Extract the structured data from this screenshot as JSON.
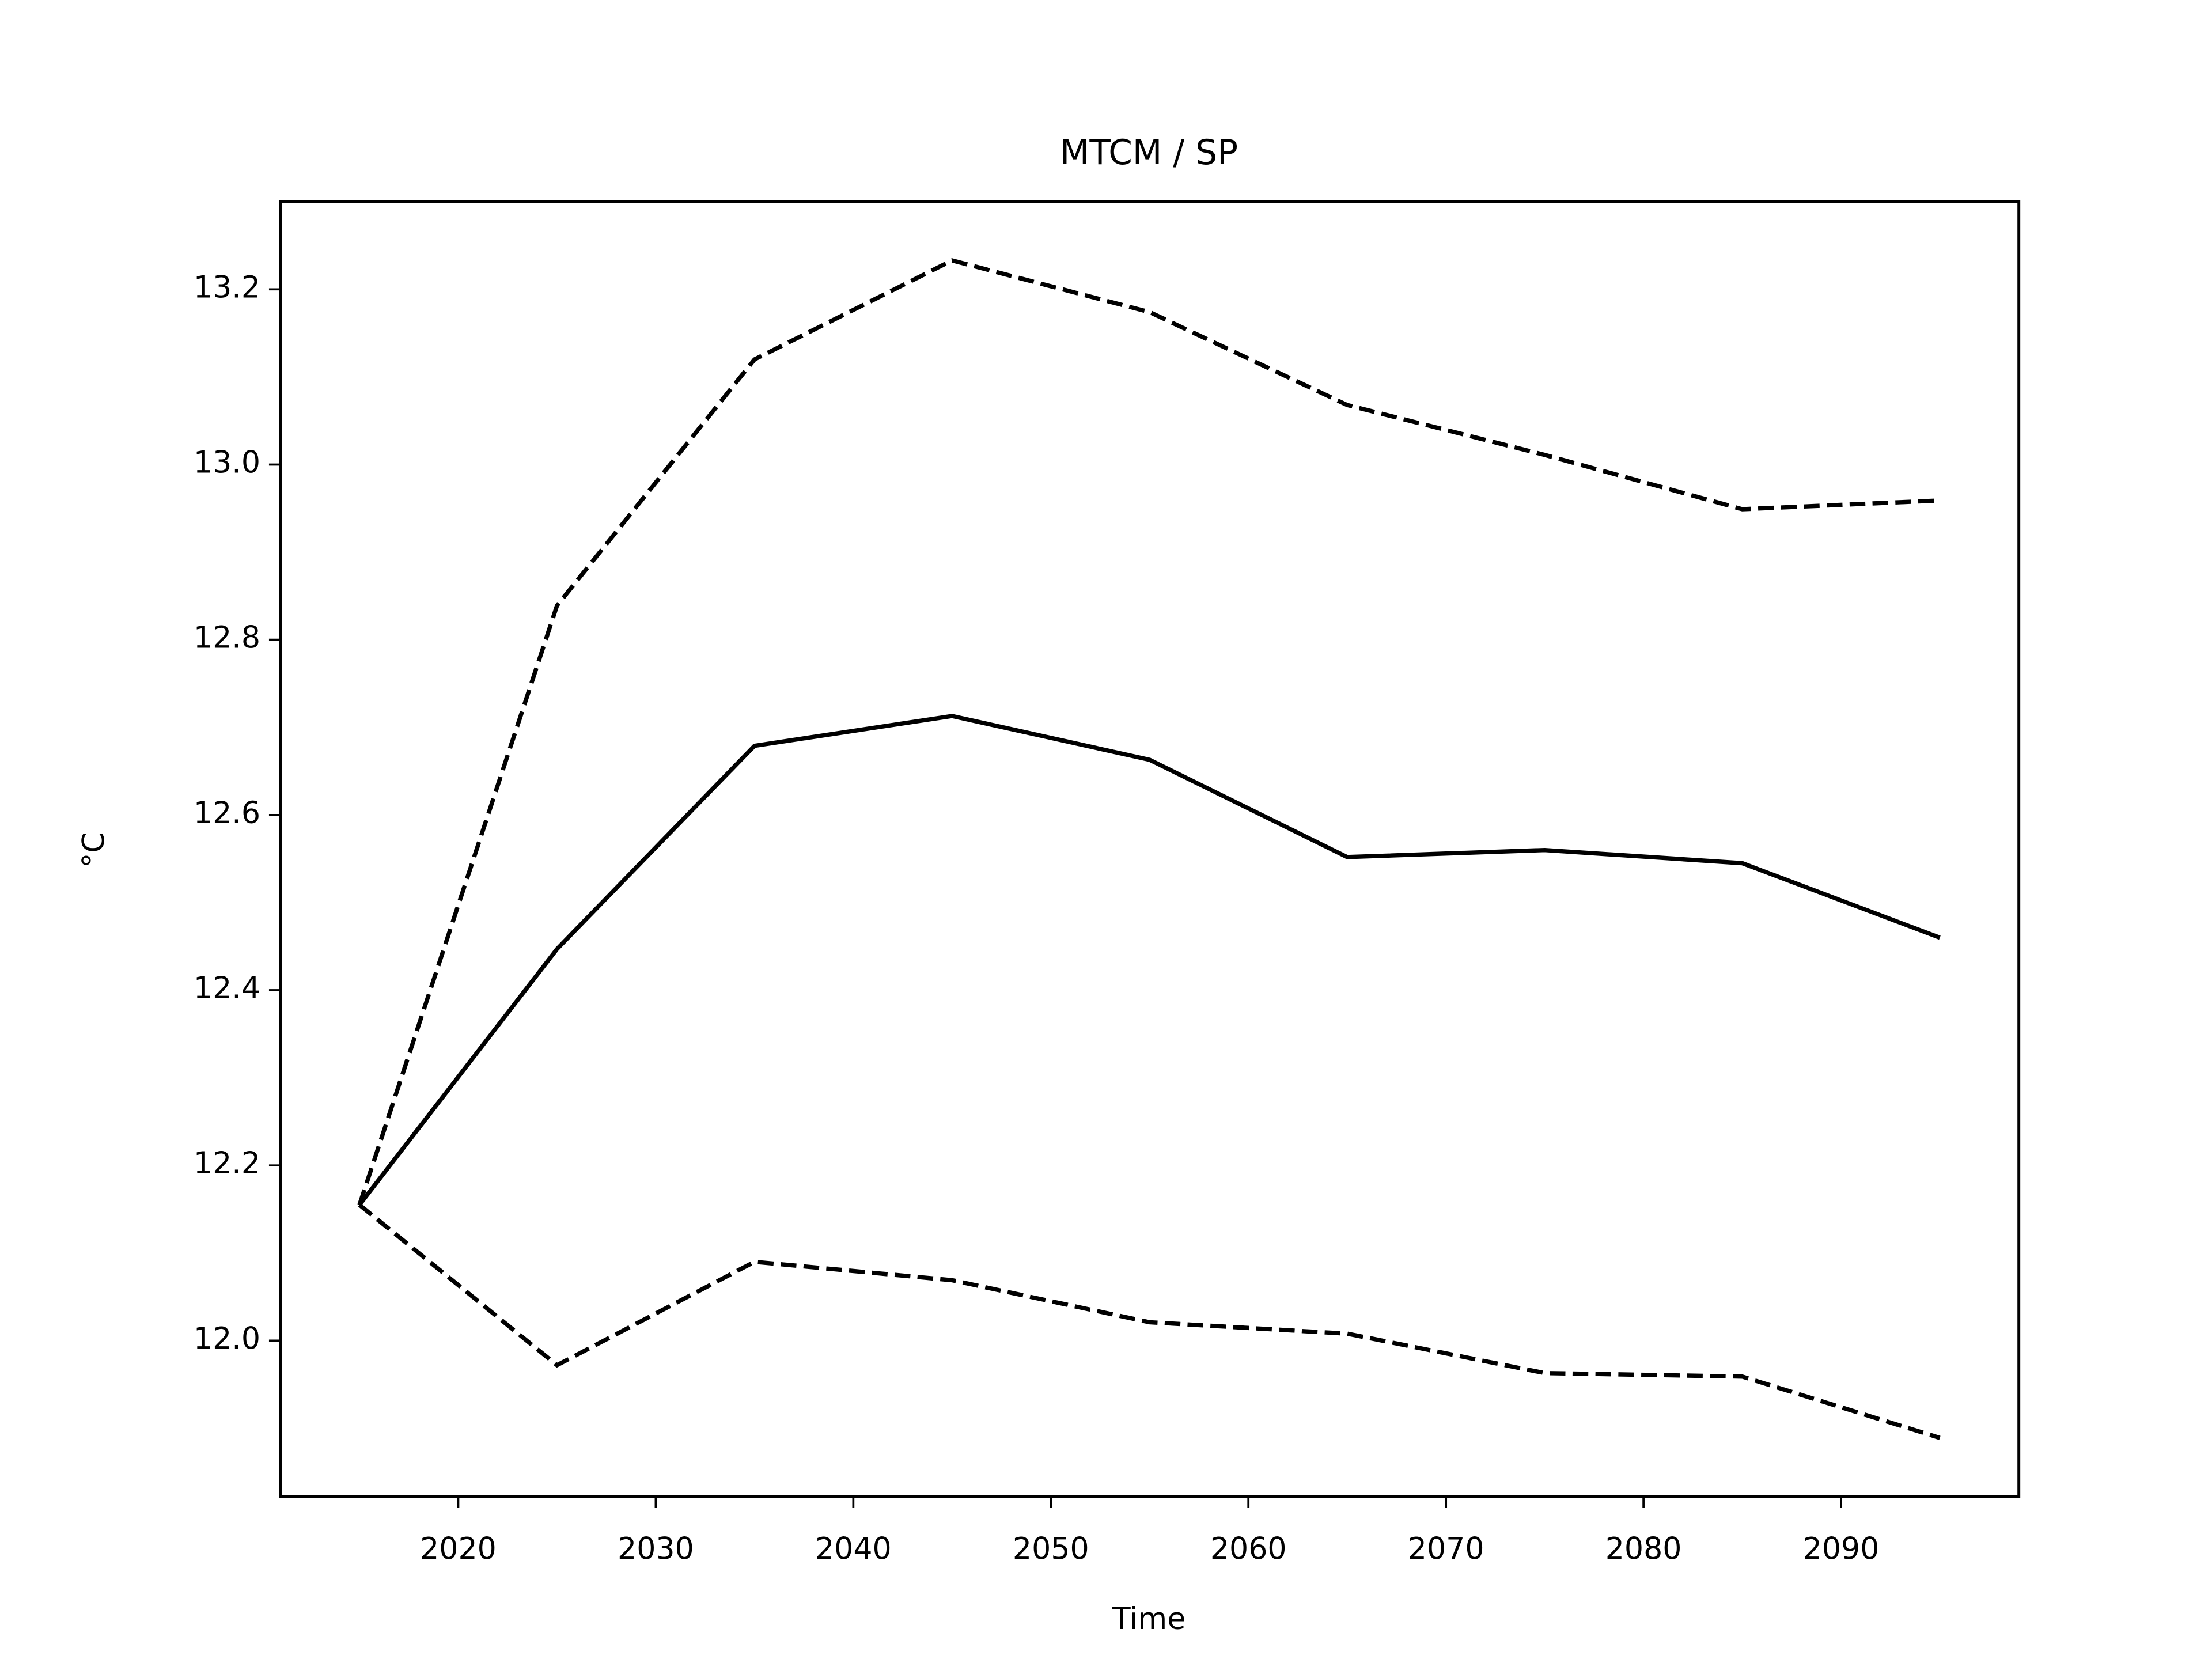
{
  "chart_data": {
    "type": "line",
    "title": "MTCM / SP",
    "x_label": "Time",
    "y_label": "°C",
    "x": [
      2015,
      2025,
      2035,
      2045,
      2055,
      2065,
      2075,
      2085,
      2095
    ],
    "series": [
      {
        "color": "#000000",
        "linestyle": "solid",
        "values": [
          12.155,
          12.447,
          12.679,
          12.713,
          12.663,
          12.552,
          12.56,
          12.545,
          12.46
        ]
      },
      {
        "color": "#000000",
        "linestyle": "dashed",
        "values": [
          12.155,
          12.839,
          13.12,
          13.233,
          13.174,
          13.068,
          13.011,
          12.949,
          12.959
        ]
      },
      {
        "color": "#000000",
        "linestyle": "dashed",
        "values": [
          12.155,
          11.972,
          12.09,
          12.069,
          12.021,
          12.008,
          11.963,
          11.959,
          11.889
        ]
      }
    ],
    "xlim": [
      2011,
      2099
    ],
    "xticks": [
      2020,
      2030,
      2040,
      2050,
      2060,
      2070,
      2080,
      2090
    ],
    "ylim": [
      11.822,
      13.3
    ],
    "yticks": [
      {
        "value": 12,
        "label": "12.0"
      },
      {
        "value": 12.2,
        "label": "12.2"
      },
      {
        "value": 12.4,
        "label": "12.4"
      },
      {
        "value": 12.6,
        "label": "12.6"
      },
      {
        "value": 12.8,
        "label": "12.8"
      },
      {
        "value": 13,
        "label": "13.0"
      },
      {
        "value": 13.2,
        "label": "13.2"
      }
    ],
    "grid": false
  }
}
